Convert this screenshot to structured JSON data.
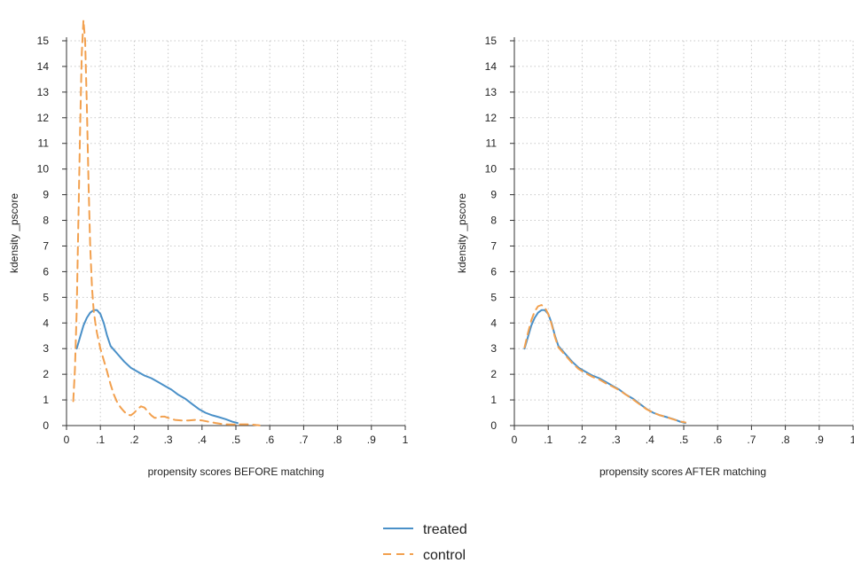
{
  "chart_data": [
    {
      "type": "line",
      "xlabel": "propensity scores BEFORE matching",
      "ylabel": "kdensity _pscore",
      "xlim": [
        0,
        1
      ],
      "ylim": [
        0,
        15
      ],
      "x_ticks": [
        "0",
        ".1",
        ".2",
        ".3",
        ".4",
        ".5",
        ".6",
        ".7",
        ".8",
        ".9",
        "1"
      ],
      "y_ticks": [
        "0",
        "1",
        "2",
        "3",
        "4",
        "5",
        "6",
        "7",
        "8",
        "9",
        "10",
        "11",
        "12",
        "13",
        "14",
        "15"
      ],
      "grid": true,
      "series": [
        {
          "name": "treated",
          "color": "#4a90c8",
          "style": "solid",
          "points": [
            [
              0.03,
              3.0
            ],
            [
              0.04,
              3.45
            ],
            [
              0.05,
              3.9
            ],
            [
              0.06,
              4.2
            ],
            [
              0.07,
              4.4
            ],
            [
              0.08,
              4.5
            ],
            [
              0.09,
              4.5
            ],
            [
              0.1,
              4.35
            ],
            [
              0.11,
              4.0
            ],
            [
              0.12,
              3.5
            ],
            [
              0.13,
              3.1
            ],
            [
              0.15,
              2.8
            ],
            [
              0.17,
              2.5
            ],
            [
              0.19,
              2.25
            ],
            [
              0.21,
              2.1
            ],
            [
              0.23,
              1.95
            ],
            [
              0.25,
              1.85
            ],
            [
              0.27,
              1.7
            ],
            [
              0.29,
              1.55
            ],
            [
              0.31,
              1.4
            ],
            [
              0.33,
              1.2
            ],
            [
              0.35,
              1.05
            ],
            [
              0.37,
              0.85
            ],
            [
              0.39,
              0.65
            ],
            [
              0.41,
              0.5
            ],
            [
              0.43,
              0.4
            ],
            [
              0.45,
              0.33
            ],
            [
              0.47,
              0.25
            ],
            [
              0.49,
              0.15
            ],
            [
              0.505,
              0.1
            ]
          ]
        },
        {
          "name": "control",
          "color": "#f2a04e",
          "style": "dashed",
          "points": [
            [
              0.02,
              0.95
            ],
            [
              0.025,
              2.2
            ],
            [
              0.03,
              4.5
            ],
            [
              0.035,
              8.0
            ],
            [
              0.04,
              11.5
            ],
            [
              0.045,
              14.5
            ],
            [
              0.05,
              15.8
            ],
            [
              0.055,
              15.0
            ],
            [
              0.06,
              12.5
            ],
            [
              0.065,
              9.5
            ],
            [
              0.07,
              7.0
            ],
            [
              0.075,
              5.4
            ],
            [
              0.08,
              4.5
            ],
            [
              0.085,
              4.0
            ],
            [
              0.09,
              3.6
            ],
            [
              0.1,
              3.0
            ],
            [
              0.11,
              2.55
            ],
            [
              0.12,
              2.1
            ],
            [
              0.13,
              1.6
            ],
            [
              0.14,
              1.2
            ],
            [
              0.15,
              0.9
            ],
            [
              0.16,
              0.7
            ],
            [
              0.17,
              0.55
            ],
            [
              0.18,
              0.42
            ],
            [
              0.19,
              0.4
            ],
            [
              0.2,
              0.5
            ],
            [
              0.21,
              0.65
            ],
            [
              0.22,
              0.75
            ],
            [
              0.23,
              0.7
            ],
            [
              0.24,
              0.55
            ],
            [
              0.25,
              0.4
            ],
            [
              0.26,
              0.3
            ],
            [
              0.27,
              0.3
            ],
            [
              0.28,
              0.35
            ],
            [
              0.29,
              0.35
            ],
            [
              0.3,
              0.3
            ],
            [
              0.32,
              0.22
            ],
            [
              0.34,
              0.2
            ],
            [
              0.36,
              0.2
            ],
            [
              0.38,
              0.22
            ],
            [
              0.4,
              0.2
            ],
            [
              0.42,
              0.15
            ],
            [
              0.44,
              0.1
            ],
            [
              0.46,
              0.06
            ],
            [
              0.48,
              0.04
            ],
            [
              0.5,
              0.04
            ],
            [
              0.52,
              0.05
            ],
            [
              0.54,
              0.05
            ],
            [
              0.56,
              0.02
            ],
            [
              0.57,
              0.01
            ]
          ]
        }
      ]
    },
    {
      "type": "line",
      "xlabel": "propensity scores AFTER matching",
      "ylabel": "kdensity _pscore",
      "xlim": [
        0,
        1
      ],
      "ylim": [
        0,
        15
      ],
      "x_ticks": [
        "0",
        ".1",
        ".2",
        ".3",
        ".4",
        ".5",
        ".6",
        ".7",
        ".8",
        ".9",
        "1"
      ],
      "y_ticks": [
        "0",
        "1",
        "2",
        "3",
        "4",
        "5",
        "6",
        "7",
        "8",
        "9",
        "10",
        "11",
        "12",
        "13",
        "14",
        "15"
      ],
      "grid": true,
      "series": [
        {
          "name": "treated",
          "color": "#4a90c8",
          "style": "solid",
          "points": [
            [
              0.03,
              3.0
            ],
            [
              0.04,
              3.45
            ],
            [
              0.05,
              3.9
            ],
            [
              0.06,
              4.2
            ],
            [
              0.07,
              4.4
            ],
            [
              0.08,
              4.5
            ],
            [
              0.09,
              4.5
            ],
            [
              0.1,
              4.35
            ],
            [
              0.11,
              4.0
            ],
            [
              0.12,
              3.5
            ],
            [
              0.13,
              3.1
            ],
            [
              0.15,
              2.8
            ],
            [
              0.17,
              2.5
            ],
            [
              0.19,
              2.25
            ],
            [
              0.21,
              2.1
            ],
            [
              0.23,
              1.95
            ],
            [
              0.25,
              1.85
            ],
            [
              0.27,
              1.7
            ],
            [
              0.29,
              1.55
            ],
            [
              0.31,
              1.4
            ],
            [
              0.33,
              1.2
            ],
            [
              0.35,
              1.05
            ],
            [
              0.37,
              0.85
            ],
            [
              0.39,
              0.65
            ],
            [
              0.41,
              0.5
            ],
            [
              0.43,
              0.4
            ],
            [
              0.45,
              0.33
            ],
            [
              0.47,
              0.25
            ],
            [
              0.49,
              0.15
            ],
            [
              0.505,
              0.1
            ]
          ]
        },
        {
          "name": "control",
          "color": "#f2a04e",
          "style": "dashed",
          "points": [
            [
              0.03,
              3.05
            ],
            [
              0.04,
              3.6
            ],
            [
              0.05,
              4.1
            ],
            [
              0.06,
              4.45
            ],
            [
              0.07,
              4.65
            ],
            [
              0.08,
              4.7
            ],
            [
              0.09,
              4.6
            ],
            [
              0.1,
              4.35
            ],
            [
              0.11,
              3.95
            ],
            [
              0.12,
              3.45
            ],
            [
              0.13,
              3.05
            ],
            [
              0.15,
              2.75
            ],
            [
              0.17,
              2.45
            ],
            [
              0.19,
              2.2
            ],
            [
              0.21,
              2.05
            ],
            [
              0.23,
              1.9
            ],
            [
              0.25,
              1.8
            ],
            [
              0.27,
              1.65
            ],
            [
              0.29,
              1.52
            ],
            [
              0.31,
              1.38
            ],
            [
              0.33,
              1.2
            ],
            [
              0.35,
              1.02
            ],
            [
              0.37,
              0.83
            ],
            [
              0.39,
              0.64
            ],
            [
              0.41,
              0.5
            ],
            [
              0.43,
              0.4
            ],
            [
              0.45,
              0.33
            ],
            [
              0.47,
              0.24
            ],
            [
              0.49,
              0.16
            ],
            [
              0.505,
              0.12
            ]
          ]
        }
      ]
    }
  ],
  "legend": {
    "position": "bottom-center",
    "items": [
      {
        "label": "treated",
        "color": "#4a90c8",
        "style": "solid"
      },
      {
        "label": "control",
        "color": "#f2a04e",
        "style": "dashed"
      }
    ]
  }
}
